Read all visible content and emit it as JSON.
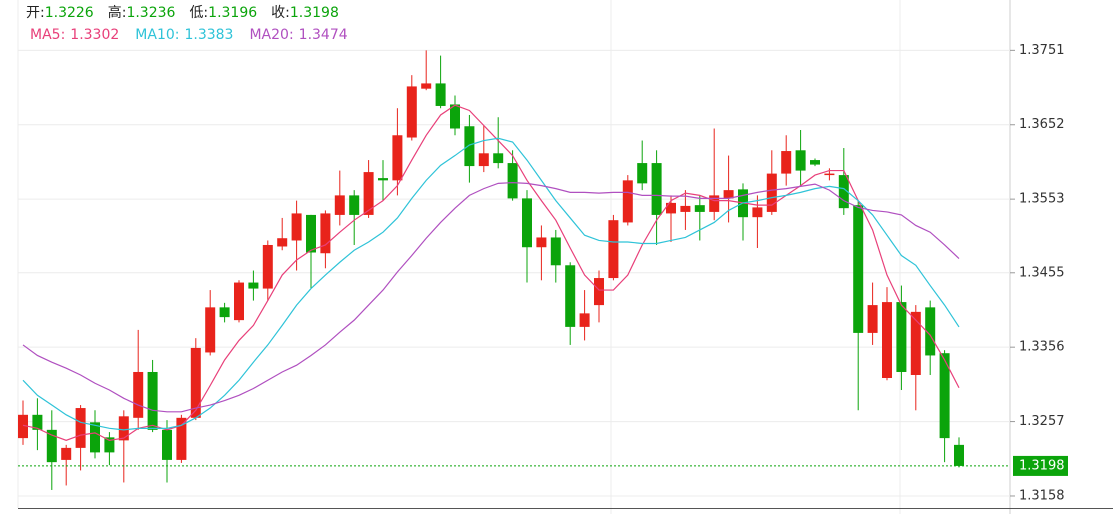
{
  "chart_data": {
    "type": "candlestick",
    "up_color": "#e8231b",
    "down_color": "#0ba40b",
    "open": [
      1.3235,
      1.3266,
      1.3246,
      1.3206,
      1.3222,
      1.3256,
      1.3236,
      1.3232,
      1.3262,
      1.3323,
      1.3246,
      1.3206,
      1.3262,
      1.3349,
      1.3409,
      1.3392,
      1.3442,
      1.3434,
      1.349,
      1.3498,
      1.3532,
      1.3481,
      1.3532,
      1.3558,
      1.3532,
      1.3581,
      1.3578,
      1.3635,
      1.37,
      1.3707,
      1.3679,
      1.365,
      1.3597,
      1.3614,
      1.3601,
      1.3554,
      1.3489,
      1.3502,
      1.3465,
      1.3383,
      1.3412,
      1.3448,
      1.3522,
      1.3601,
      1.3601,
      1.3534,
      1.3536,
      1.3545,
      1.3536,
      1.3554,
      1.3566,
      1.3529,
      1.3536,
      1.3587,
      1.3618,
      1.3605,
      1.3585,
      1.3585,
      1.3545,
      1.3375,
      1.3315,
      1.3416,
      1.3319,
      1.3409,
      1.3348,
      1.3226
    ],
    "high": [
      1.3285,
      1.3288,
      1.3272,
      1.3226,
      1.3279,
      1.3272,
      1.3243,
      1.3272,
      1.3379,
      1.3339,
      1.3259,
      1.3266,
      1.3368,
      1.3432,
      1.3415,
      1.3445,
      1.3458,
      1.3498,
      1.3528,
      1.3551,
      1.3532,
      1.3538,
      1.3591,
      1.3565,
      1.3605,
      1.3605,
      1.3674,
      1.3718,
      1.3751,
      1.3744,
      1.3691,
      1.3665,
      1.3651,
      1.3662,
      1.3618,
      1.3565,
      1.3518,
      1.3512,
      1.3469,
      1.3432,
      1.3458,
      1.3532,
      1.3585,
      1.3631,
      1.3618,
      1.3558,
      1.3565,
      1.3558,
      1.3647,
      1.3611,
      1.3574,
      1.3558,
      1.3618,
      1.3638,
      1.3645,
      1.3607,
      1.3594,
      1.3621,
      1.3551,
      1.3442,
      1.3436,
      1.3438,
      1.3412,
      1.3418,
      1.3352,
      1.3236
    ],
    "low": [
      1.3226,
      1.3219,
      1.3166,
      1.3172,
      1.3192,
      1.3208,
      1.3199,
      1.3176,
      1.3246,
      1.3243,
      1.3176,
      1.3202,
      1.3259,
      1.3345,
      1.3389,
      1.3389,
      1.3418,
      1.3418,
      1.3485,
      1.3458,
      1.3434,
      1.3461,
      1.3518,
      1.3492,
      1.3528,
      1.3551,
      1.3558,
      1.3631,
      1.3698,
      1.3674,
      1.3638,
      1.3575,
      1.3589,
      1.3594,
      1.3551,
      1.3442,
      1.3445,
      1.3442,
      1.3359,
      1.3365,
      1.3389,
      1.3445,
      1.3518,
      1.3565,
      1.3492,
      1.3496,
      1.3512,
      1.3498,
      1.3525,
      1.3522,
      1.3498,
      1.3488,
      1.3532,
      1.3571,
      1.3571,
      1.3597,
      1.3578,
      1.3532,
      1.3272,
      1.3359,
      1.3312,
      1.3299,
      1.3272,
      1.3319,
      1.3203,
      1.3196
    ],
    "close": [
      1.3266,
      1.3246,
      1.3203,
      1.3222,
      1.3275,
      1.3216,
      1.3216,
      1.3264,
      1.3323,
      1.3246,
      1.3206,
      1.3262,
      1.3355,
      1.3409,
      1.3396,
      1.3442,
      1.3434,
      1.3492,
      1.3501,
      1.3534,
      1.3482,
      1.3534,
      1.3558,
      1.3532,
      1.3589,
      1.3578,
      1.3638,
      1.3703,
      1.3707,
      1.3677,
      1.3647,
      1.3597,
      1.3614,
      1.3601,
      1.3554,
      1.3489,
      1.3502,
      1.3465,
      1.3383,
      1.3401,
      1.3448,
      1.3525,
      1.3578,
      1.3574,
      1.3532,
      1.3548,
      1.3544,
      1.3536,
      1.3558,
      1.3565,
      1.3529,
      1.3542,
      1.3587,
      1.3617,
      1.3591,
      1.3599,
      1.3587,
      1.3541,
      1.3375,
      1.3412,
      1.3416,
      1.3323,
      1.3403,
      1.3345,
      1.3235,
      1.3198
    ],
    "ohlc_legend": [
      {
        "label": "开:",
        "value": 1.3226
      },
      {
        "label": "高:",
        "value": 1.3236
      },
      {
        "label": "低:",
        "value": 1.3196
      },
      {
        "label": "收:",
        "value": 1.3198
      }
    ],
    "ohlc_legend_color": "#0ba40b",
    "ma_lines": [
      {
        "label": "MA5:",
        "legend_value": 1.3302,
        "color": "#e8407a",
        "values": [
          1.3252,
          1.3248,
          1.3239,
          1.3232,
          1.3239,
          1.3242,
          1.3232,
          1.3235,
          1.3248,
          1.3252,
          1.3246,
          1.3252,
          1.3272,
          1.3305,
          1.3339,
          1.3365,
          1.3385,
          1.3418,
          1.3452,
          1.3472,
          1.3485,
          1.3492,
          1.3509,
          1.3525,
          1.3538,
          1.3551,
          1.3571,
          1.3605,
          1.3638,
          1.3665,
          1.3678,
          1.3671,
          1.3651,
          1.3631,
          1.3611,
          1.3578,
          1.3551,
          1.3525,
          1.3488,
          1.3452,
          1.3432,
          1.3432,
          1.3452,
          1.3492,
          1.3525,
          1.3551,
          1.3561,
          1.3558,
          1.3551,
          1.3551,
          1.3548,
          1.3545,
          1.3545,
          1.3558,
          1.3571,
          1.3585,
          1.3591,
          1.3591,
          1.3551,
          1.3512,
          1.3452,
          1.3412,
          1.3392,
          1.3372,
          1.3339,
          1.3302
        ]
      },
      {
        "label": "MA10:",
        "legend_value": 1.3383,
        "color": "#2fc3d8",
        "values": [
          1.3312,
          1.3292,
          1.3279,
          1.3266,
          1.3256,
          1.3252,
          1.3248,
          1.3246,
          1.3248,
          1.3248,
          1.3248,
          1.3252,
          1.3262,
          1.3275,
          1.3292,
          1.3312,
          1.3336,
          1.3359,
          1.3385,
          1.3412,
          1.3434,
          1.3452,
          1.3469,
          1.3485,
          1.3496,
          1.3509,
          1.3528,
          1.3554,
          1.3578,
          1.3598,
          1.3611,
          1.3625,
          1.3631,
          1.3634,
          1.3629,
          1.3605,
          1.3578,
          1.3551,
          1.3528,
          1.3505,
          1.3498,
          1.3496,
          1.3496,
          1.3494,
          1.3494,
          1.3498,
          1.3502,
          1.3512,
          1.3522,
          1.3538,
          1.3548,
          1.3551,
          1.3555,
          1.3558,
          1.3562,
          1.3567,
          1.357,
          1.3567,
          1.3551,
          1.3532,
          1.3505,
          1.3478,
          1.3465,
          1.3438,
          1.3412,
          1.3383
        ]
      },
      {
        "label": "MA20:",
        "legend_value": 1.3474,
        "color": "#b050c0",
        "values": [
          1.3359,
          1.3345,
          1.3336,
          1.3328,
          1.3319,
          1.3308,
          1.3299,
          1.3288,
          1.3279,
          1.3272,
          1.327,
          1.327,
          1.3275,
          1.3279,
          1.3285,
          1.3292,
          1.3301,
          1.3312,
          1.3323,
          1.3332,
          1.3345,
          1.3359,
          1.3376,
          1.3392,
          1.3412,
          1.3432,
          1.3456,
          1.3478,
          1.3501,
          1.3522,
          1.3541,
          1.3558,
          1.3567,
          1.3574,
          1.3575,
          1.3574,
          1.3571,
          1.3567,
          1.3562,
          1.3562,
          1.3561,
          1.3562,
          1.3562,
          1.3558,
          1.3558,
          1.3557,
          1.3557,
          1.3554,
          1.3554,
          1.3554,
          1.3558,
          1.3562,
          1.3565,
          1.3567,
          1.357,
          1.3573,
          1.3565,
          1.3551,
          1.3542,
          1.3538,
          1.3536,
          1.3532,
          1.3518,
          1.3509,
          1.3492,
          1.3474
        ]
      }
    ],
    "last_price": 1.3198,
    "last_price_color": "#0ba40b",
    "ylim": [
      1.3142,
      1.3818
    ],
    "yticks": [
      1.3751,
      1.3652,
      1.3553,
      1.3455,
      1.3356,
      1.3257,
      1.3158
    ],
    "grid": true
  }
}
